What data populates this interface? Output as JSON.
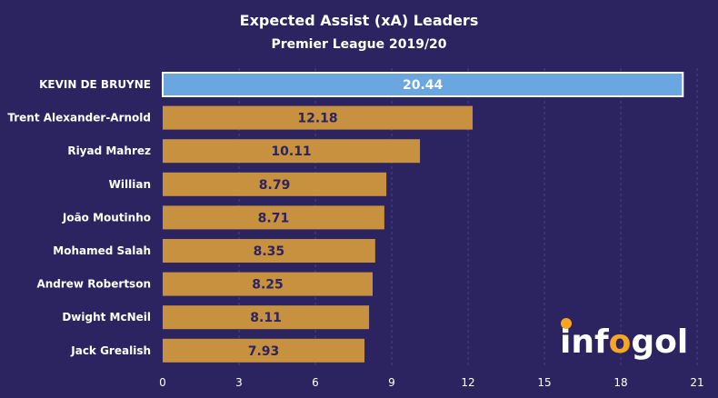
{
  "colors": {
    "background": "#2b2460",
    "bar": "#c8913f",
    "highlight_bar": "#6aa7e0",
    "highlight_border": "#ffffff",
    "value_text": "#2b2460",
    "highlight_value_text": "#ffffff",
    "grid": "#4b4584",
    "logo_white": "#ffffff",
    "logo_orange": "#f7a623"
  },
  "logo": {
    "text_left": "inf",
    "text_o": "o",
    "text_right": "gol"
  },
  "chart_data": {
    "type": "bar",
    "orientation": "horizontal",
    "title": "Expected Assist (xA) Leaders",
    "subtitle": "Premier League 2019/20",
    "categories": [
      "KEVIN DE BRUYNE",
      "Trent Alexander-Arnold",
      "Riyad Mahrez",
      "Willian",
      "João Moutinho",
      "Mohamed Salah",
      "Andrew Robertson",
      "Dwight McNeil",
      "Jack Grealish"
    ],
    "values": [
      20.44,
      12.18,
      10.11,
      8.79,
      8.71,
      8.35,
      8.25,
      8.11,
      7.93
    ],
    "value_labels": [
      "20.44",
      "12.18",
      "10.11",
      "8.79",
      "8.71",
      "8.35",
      "8.25",
      "8.11",
      "7.93"
    ],
    "highlight_index": 0,
    "xlim": [
      0,
      21
    ],
    "xticks": [
      0,
      3,
      6,
      9,
      12,
      15,
      18,
      21
    ],
    "grid": true,
    "legend": "none"
  }
}
